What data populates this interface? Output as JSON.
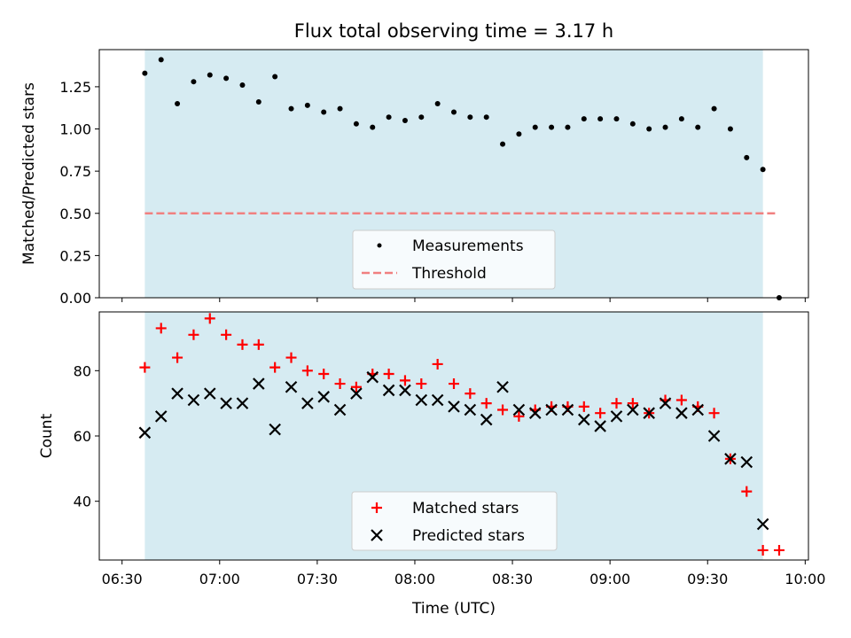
{
  "chart_data": [
    {
      "type": "scatter",
      "title": "Flux total observing time = 3.17 h",
      "xlabel": "",
      "ylabel": "Matched/Predicted stars",
      "ylim": [
        0,
        1.47
      ],
      "xlim_minutes": [
        383,
        601
      ],
      "yticks": [
        0.0,
        0.25,
        0.5,
        0.75,
        1.0,
        1.25
      ],
      "ytick_labels": [
        "0.00",
        "0.25",
        "0.50",
        "0.75",
        "1.00",
        "1.25"
      ],
      "shaded_region": {
        "start": "06:37",
        "end": "09:47",
        "color": "#add8e6"
      },
      "grid": false,
      "legend_position": "lower-center",
      "series": [
        {
          "name": "Measurements",
          "color": "#000000",
          "marker": "dot",
          "x": [
            "06:37",
            "06:42",
            "06:47",
            "06:52",
            "06:57",
            "07:02",
            "07:07",
            "07:12",
            "07:17",
            "07:22",
            "07:27",
            "07:32",
            "07:37",
            "07:42",
            "07:47",
            "07:52",
            "07:57",
            "08:02",
            "08:07",
            "08:12",
            "08:17",
            "08:22",
            "08:27",
            "08:32",
            "08:37",
            "08:42",
            "08:47",
            "08:52",
            "08:57",
            "09:02",
            "09:07",
            "09:12",
            "09:17",
            "09:22",
            "09:27",
            "09:32",
            "09:37",
            "09:42",
            "09:47",
            "09:52"
          ],
          "y": [
            1.33,
            1.41,
            1.15,
            1.28,
            1.32,
            1.3,
            1.26,
            1.16,
            1.31,
            1.12,
            1.14,
            1.1,
            1.12,
            1.03,
            1.01,
            1.07,
            1.05,
            1.07,
            1.15,
            1.1,
            1.07,
            1.07,
            0.91,
            0.97,
            1.01,
            1.01,
            1.01,
            1.06,
            1.06,
            1.06,
            1.03,
            1.0,
            1.01,
            1.06,
            1.01,
            1.12,
            1.0,
            0.83,
            0.76,
            0.0
          ]
        },
        {
          "name": "Threshold",
          "color": "#f08080",
          "style": "dashed",
          "x": [
            "06:37",
            "09:51"
          ],
          "y": [
            0.5,
            0.5
          ]
        }
      ]
    },
    {
      "type": "scatter",
      "title": "",
      "xlabel": "Time (UTC)",
      "ylabel": "Count",
      "ylim": [
        22,
        98
      ],
      "xlim_minutes": [
        383,
        601
      ],
      "yticks": [
        40,
        60,
        80
      ],
      "ytick_labels": [
        "40",
        "60",
        "80"
      ],
      "xticks": [
        "06:30",
        "07:00",
        "07:30",
        "08:00",
        "08:30",
        "09:00",
        "09:30",
        "10:00"
      ],
      "shaded_region": {
        "start": "06:37",
        "end": "09:47",
        "color": "#add8e6"
      },
      "grid": false,
      "legend_position": "lower-center",
      "series": [
        {
          "name": "Matched stars",
          "color": "#ff0000",
          "marker": "plus",
          "x": [
            "06:37",
            "06:42",
            "06:47",
            "06:52",
            "06:57",
            "07:02",
            "07:07",
            "07:12",
            "07:17",
            "07:22",
            "07:27",
            "07:32",
            "07:37",
            "07:42",
            "07:47",
            "07:52",
            "07:57",
            "08:02",
            "08:07",
            "08:12",
            "08:17",
            "08:22",
            "08:27",
            "08:32",
            "08:37",
            "08:42",
            "08:47",
            "08:52",
            "08:57",
            "09:02",
            "09:07",
            "09:12",
            "09:17",
            "09:22",
            "09:27",
            "09:32",
            "09:37",
            "09:42",
            "09:47",
            "09:52"
          ],
          "y": [
            81,
            93,
            84,
            91,
            96,
            91,
            88,
            88,
            81,
            84,
            80,
            79,
            76,
            75,
            79,
            79,
            77,
            76,
            82,
            76,
            73,
            70,
            68,
            66,
            68,
            69,
            69,
            69,
            67,
            70,
            70,
            67,
            71,
            71,
            69,
            67,
            53,
            43,
            25,
            25
          ]
        },
        {
          "name": "Predicted stars",
          "color": "#000000",
          "marker": "x",
          "x": [
            "06:37",
            "06:42",
            "06:47",
            "06:52",
            "06:57",
            "07:02",
            "07:07",
            "07:12",
            "07:17",
            "07:22",
            "07:27",
            "07:32",
            "07:37",
            "07:42",
            "07:47",
            "07:52",
            "07:57",
            "08:02",
            "08:07",
            "08:12",
            "08:17",
            "08:22",
            "08:27",
            "08:32",
            "08:37",
            "08:42",
            "08:47",
            "08:52",
            "08:57",
            "09:02",
            "09:07",
            "09:12",
            "09:17",
            "09:22",
            "09:27",
            "09:32",
            "09:37",
            "09:42",
            "09:47"
          ],
          "y": [
            61,
            66,
            73,
            71,
            73,
            70,
            70,
            76,
            62,
            75,
            70,
            72,
            68,
            73,
            78,
            74,
            74,
            71,
            71,
            69,
            68,
            65,
            75,
            68,
            67,
            68,
            68,
            65,
            63,
            66,
            68,
            67,
            70,
            67,
            68,
            60,
            53,
            52,
            33
          ]
        }
      ]
    }
  ]
}
